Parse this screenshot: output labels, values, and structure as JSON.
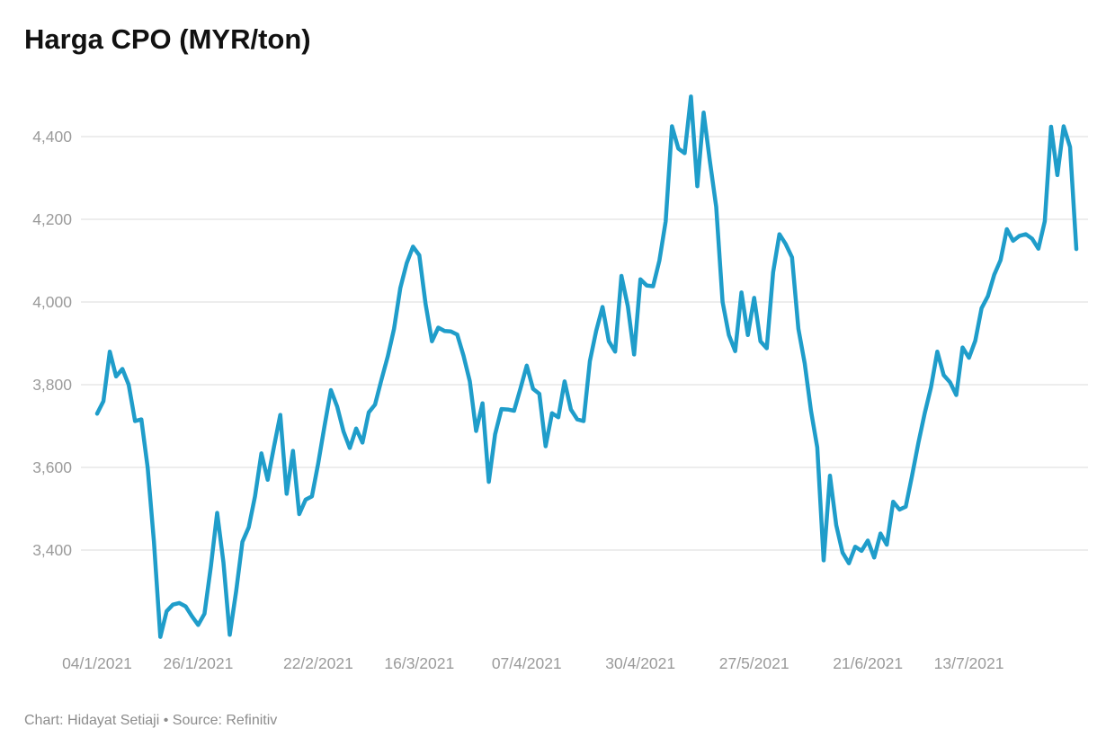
{
  "header": {
    "title": "Harga CPO (MYR/ton)"
  },
  "footer": {
    "credit": "Chart: Hidayat Setiaji • Source: Refinitiv"
  },
  "chart_data": {
    "type": "line",
    "title": "Harga CPO (MYR/ton)",
    "unit": "MYR/ton",
    "series_name": "Harga CPO",
    "line_color": "#1f9dca",
    "grid_color": "#e2e2e2",
    "axis_label_color": "#9a9a9a",
    "background_color": "#ffffff",
    "grid": "horizontal",
    "legend": "none",
    "y_ticks": [
      3400,
      3600,
      3800,
      4000,
      4200,
      4400
    ],
    "y_tick_labels": [
      "3,400",
      "3,600",
      "3,800",
      "4,000",
      "4,200",
      "4,400"
    ],
    "ylim": [
      3150,
      4520
    ],
    "x_tick_labels": [
      "04/1/2021",
      "26/1/2021",
      "22/2/2021",
      "16/3/2021",
      "07/4/2021",
      "30/4/2021",
      "27/5/2021",
      "21/6/2021",
      "13/7/2021"
    ],
    "x_tick_indices": [
      0,
      16,
      35,
      51,
      68,
      86,
      104,
      122,
      138
    ],
    "values": [
      3730,
      3760,
      3880,
      3820,
      3838,
      3800,
      3712,
      3716,
      3600,
      3420,
      3190,
      3252,
      3268,
      3272,
      3264,
      3240,
      3219,
      3246,
      3360,
      3490,
      3370,
      3195,
      3300,
      3420,
      3455,
      3530,
      3634,
      3570,
      3650,
      3727,
      3536,
      3640,
      3487,
      3522,
      3530,
      3610,
      3700,
      3787,
      3747,
      3687,
      3647,
      3694,
      3660,
      3733,
      3752,
      3812,
      3868,
      3935,
      4034,
      4094,
      4134,
      4113,
      3995,
      3905,
      3938,
      3930,
      3929,
      3921,
      3870,
      3808,
      3688,
      3755,
      3565,
      3680,
      3741,
      3740,
      3737,
      3790,
      3846,
      3790,
      3778,
      3651,
      3731,
      3721,
      3808,
      3740,
      3716,
      3712,
      3857,
      3930,
      3988,
      3905,
      3880,
      4063,
      3990,
      3873,
      4055,
      4040,
      4038,
      4100,
      4195,
      4425,
      4371,
      4360,
      4497,
      4280,
      4458,
      4340,
      4230,
      4000,
      3920,
      3881,
      4023,
      3920,
      4010,
      3905,
      3888,
      4072,
      4164,
      4140,
      4108,
      3935,
      3852,
      3737,
      3648,
      3375,
      3580,
      3460,
      3394,
      3368,
      3408,
      3398,
      3423,
      3382,
      3440,
      3413,
      3517,
      3498,
      3505,
      3580,
      3660,
      3731,
      3794,
      3880,
      3823,
      3806,
      3775,
      3890,
      3865,
      3906,
      3985,
      4014,
      4066,
      4101,
      4176,
      4148,
      4160,
      4164,
      4153,
      4129,
      4195,
      4424,
      4307,
      4425,
      4375,
      4128
    ]
  }
}
